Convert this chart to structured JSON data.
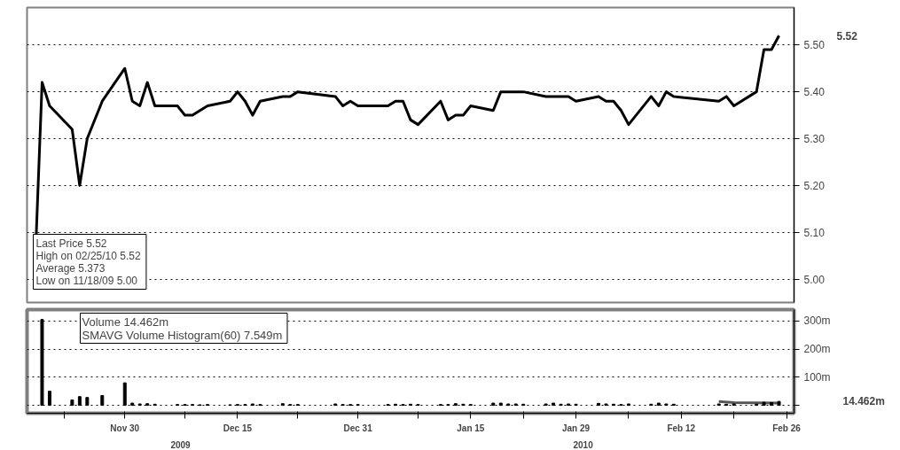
{
  "chart_data": [
    {
      "type": "line",
      "x": [
        "2009-11-18",
        "2009-11-19",
        "2009-11-20",
        "2009-11-23",
        "2009-11-24",
        "2009-11-25",
        "2009-11-27",
        "2009-11-30",
        "2009-12-01",
        "2009-12-02",
        "2009-12-03",
        "2009-12-04",
        "2009-12-07",
        "2009-12-08",
        "2009-12-09",
        "2009-12-10",
        "2009-12-11",
        "2009-12-14",
        "2009-12-15",
        "2009-12-16",
        "2009-12-17",
        "2009-12-18",
        "2009-12-21",
        "2009-12-22",
        "2009-12-23",
        "2009-12-28",
        "2009-12-29",
        "2009-12-30",
        "2009-12-31",
        "2010-01-04",
        "2010-01-05",
        "2010-01-06",
        "2010-01-07",
        "2010-01-08",
        "2010-01-11",
        "2010-01-12",
        "2010-01-13",
        "2010-01-14",
        "2010-01-15",
        "2010-01-18",
        "2010-01-19",
        "2010-01-20",
        "2010-01-21",
        "2010-01-22",
        "2010-01-25",
        "2010-01-26",
        "2010-01-27",
        "2010-01-28",
        "2010-01-29",
        "2010-02-01",
        "2010-02-02",
        "2010-02-03",
        "2010-02-04",
        "2010-02-05",
        "2010-02-08",
        "2010-02-09",
        "2010-02-10",
        "2010-02-11",
        "2010-02-17",
        "2010-02-18",
        "2010-02-19",
        "2010-02-22",
        "2010-02-23",
        "2010-02-24",
        "2010-02-25"
      ],
      "series": [
        {
          "color": "#000000",
          "values": [
            5.0,
            5.42,
            5.37,
            5.32,
            5.2,
            5.3,
            5.38,
            5.45,
            5.38,
            5.37,
            5.42,
            5.37,
            5.37,
            5.35,
            5.35,
            5.36,
            5.37,
            5.38,
            5.4,
            5.38,
            5.35,
            5.38,
            5.39,
            5.39,
            5.4,
            5.39,
            5.37,
            5.38,
            5.37,
            5.37,
            5.38,
            5.38,
            5.34,
            5.33,
            5.38,
            5.34,
            5.35,
            5.35,
            5.37,
            5.36,
            5.4,
            5.4,
            5.4,
            5.4,
            5.39,
            5.39,
            5.39,
            5.39,
            5.38,
            5.39,
            5.38,
            5.38,
            5.36,
            5.33,
            5.39,
            5.37,
            5.4,
            5.39,
            5.38,
            5.39,
            5.37,
            5.4,
            5.49,
            5.49,
            5.52
          ]
        }
      ],
      "xlim": [
        "2009-11-17",
        "2010-02-27"
      ],
      "xticks": [
        "2009-11-30",
        "2009-12-15",
        "2009-12-31",
        "2010-01-15",
        "2010-01-29",
        "2010-02-12",
        "2010-02-26"
      ],
      "ylim": [
        4.95,
        5.58
      ],
      "yticks": [
        {
          "value": 5.0,
          "label": "5.00"
        },
        {
          "value": 5.1,
          "label": "5.10"
        },
        {
          "value": 5.2,
          "label": "5.20"
        },
        {
          "value": 5.3,
          "label": "5.30"
        },
        {
          "value": 5.4,
          "label": "5.40"
        },
        {
          "value": 5.5,
          "label": "5.50"
        }
      ],
      "grid": true,
      "line_style": "solid",
      "tick_labels": "y",
      "annotations": [
        "Last Price  5.52",
        "High on 02/25/10  5.52",
        "Average  5.373",
        "Low on 11/18/09  5.00",
        "5.52"
      ]
    },
    {
      "type": "bar",
      "x": [
        "2009-11-19",
        "2009-11-20",
        "2009-11-23",
        "2009-11-24",
        "2009-11-25",
        "2009-11-27",
        "2009-11-30",
        "2009-12-01",
        "2009-12-02",
        "2009-12-03",
        "2009-12-04",
        "2009-12-07",
        "2009-12-08",
        "2009-12-09",
        "2009-12-10",
        "2009-12-11",
        "2009-12-14",
        "2009-12-15",
        "2009-12-16",
        "2009-12-17",
        "2009-12-18",
        "2009-12-21",
        "2009-12-22",
        "2009-12-23",
        "2009-12-28",
        "2009-12-29",
        "2009-12-30",
        "2009-12-31",
        "2010-01-04",
        "2010-01-05",
        "2010-01-06",
        "2010-01-07",
        "2010-01-08",
        "2010-01-11",
        "2010-01-12",
        "2010-01-13",
        "2010-01-14",
        "2010-01-15",
        "2010-01-18",
        "2010-01-19",
        "2010-01-20",
        "2010-01-21",
        "2010-01-22",
        "2010-01-25",
        "2010-01-26",
        "2010-01-27",
        "2010-01-28",
        "2010-01-29",
        "2010-02-01",
        "2010-02-02",
        "2010-02-03",
        "2010-02-04",
        "2010-02-05",
        "2010-02-08",
        "2010-02-09",
        "2010-02-10",
        "2010-02-11",
        "2010-02-17",
        "2010-02-18",
        "2010-02-19",
        "2010-02-22",
        "2010-02-23",
        "2010-02-24",
        "2010-02-25"
      ],
      "series": [
        {
          "type": "bar",
          "color": "#000000",
          "values": [
            305,
            50,
            19,
            31,
            28,
            35,
            80,
            8,
            5,
            6,
            4,
            3,
            3,
            3,
            2,
            3,
            2,
            3,
            3,
            5,
            3,
            6,
            3,
            3,
            5,
            3,
            3,
            3,
            3,
            4,
            3,
            4,
            3,
            3,
            3,
            6,
            4,
            3,
            8,
            8,
            5,
            5,
            4,
            5,
            8,
            4,
            5,
            4,
            7,
            5,
            4,
            3,
            5,
            4,
            8,
            5,
            4,
            5,
            4,
            5,
            4,
            11,
            10,
            14
          ]
        },
        {
          "type": "line",
          "color": "#555555",
          "x": [
            "2010-02-17",
            "2010-02-19",
            "2010-02-25"
          ],
          "values": [
            14,
            10,
            8
          ]
        }
      ],
      "xlim": [
        "2009-11-17",
        "2010-02-27"
      ],
      "xticks": [
        {
          "value": "2009-11-22",
          "label": null
        },
        {
          "value": "2009-11-30",
          "label": "Nov 30"
        },
        {
          "value": "2009-12-08",
          "label": null
        },
        {
          "value": "2009-12-15",
          "label": "Dec 15"
        },
        {
          "value": "2009-12-23",
          "label": null
        },
        {
          "value": "2009-12-31",
          "label": "Dec 31"
        },
        {
          "value": "2010-01-08",
          "label": null
        },
        {
          "value": "2010-01-15",
          "label": "Jan 15"
        },
        {
          "value": "2010-01-22",
          "label": null
        },
        {
          "value": "2010-01-29",
          "label": "Jan 29"
        },
        {
          "value": "2010-02-05",
          "label": null
        },
        {
          "value": "2010-02-12",
          "label": "Feb 12"
        },
        {
          "value": "2010-02-19",
          "label": null
        },
        {
          "value": "2010-02-26",
          "label": "Feb 26"
        }
      ],
      "ylim": [
        -28,
        340
      ],
      "yticks": [
        {
          "value": 0,
          "label": null
        },
        {
          "value": 100,
          "label": "100m"
        },
        {
          "value": 200,
          "label": "200m"
        },
        {
          "value": 300,
          "label": "300m"
        }
      ],
      "grid": true,
      "annotations": [
        "Volume  14.462m",
        "SMAVG Volume Histogram(60)  7.549m",
        "14.462m",
        "2009",
        "2010"
      ]
    }
  ]
}
